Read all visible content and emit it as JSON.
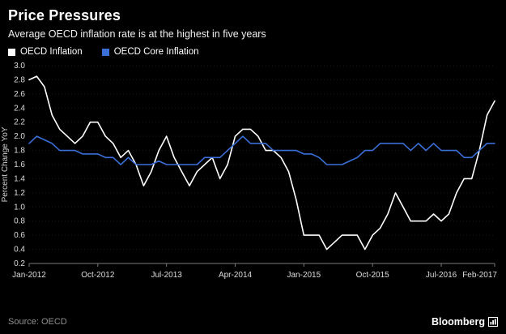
{
  "footer": {
    "source": "Source: OECD",
    "brand": "Bloomberg"
  },
  "chart_data": {
    "type": "line",
    "title": "Price Pressures",
    "subtitle": "Average OECD inflation rate is at the highest in five years",
    "ylabel": "Percent Change YoY",
    "ylim": [
      0.2,
      3.0
    ],
    "y_ticks": [
      0.2,
      0.4,
      0.6,
      0.8,
      1.0,
      1.2,
      1.4,
      1.6,
      1.8,
      2.0,
      2.2,
      2.4,
      2.6,
      2.8,
      3.0
    ],
    "x_unit": "monthly, Jan-2012 to Feb-2017",
    "x_ticks": [
      {
        "i": 0,
        "label": "Jan-2012"
      },
      {
        "i": 9,
        "label": "Oct-2012"
      },
      {
        "i": 18,
        "label": "Jul-2013"
      },
      {
        "i": 27,
        "label": "Apr-2014"
      },
      {
        "i": 36,
        "label": "Jan-2015"
      },
      {
        "i": 45,
        "label": "Oct-2015"
      },
      {
        "i": 54,
        "label": "Jul-2016"
      },
      {
        "i": 61,
        "label": "Feb-2017"
      }
    ],
    "legend_position": "top-left",
    "grid": "off",
    "series": [
      {
        "name": "OECD Inflation",
        "color": "#ffffff",
        "values": [
          2.8,
          2.85,
          2.7,
          2.3,
          2.1,
          2.0,
          1.9,
          2.0,
          2.2,
          2.2,
          2.0,
          1.9,
          1.7,
          1.8,
          1.6,
          1.3,
          1.5,
          1.8,
          2.0,
          1.7,
          1.5,
          1.3,
          1.5,
          1.6,
          1.7,
          1.4,
          1.6,
          2.0,
          2.1,
          2.1,
          2.0,
          1.8,
          1.8,
          1.7,
          1.5,
          1.1,
          0.6,
          0.6,
          0.6,
          0.4,
          0.5,
          0.6,
          0.6,
          0.6,
          0.4,
          0.6,
          0.7,
          0.9,
          1.2,
          1.0,
          0.8,
          0.8,
          0.8,
          0.9,
          0.8,
          0.9,
          1.2,
          1.4,
          1.4,
          1.8,
          2.3,
          2.5
        ]
      },
      {
        "name": "OECD Core Inflation",
        "color": "#3a6fd8",
        "values": [
          1.9,
          2.0,
          1.95,
          1.9,
          1.8,
          1.8,
          1.8,
          1.75,
          1.75,
          1.75,
          1.7,
          1.7,
          1.6,
          1.7,
          1.6,
          1.6,
          1.6,
          1.65,
          1.6,
          1.6,
          1.6,
          1.6,
          1.6,
          1.7,
          1.7,
          1.7,
          1.8,
          1.9,
          2.0,
          1.9,
          1.9,
          1.9,
          1.8,
          1.8,
          1.8,
          1.8,
          1.75,
          1.75,
          1.7,
          1.6,
          1.6,
          1.6,
          1.65,
          1.7,
          1.8,
          1.8,
          1.9,
          1.9,
          1.9,
          1.9,
          1.8,
          1.9,
          1.8,
          1.9,
          1.8,
          1.8,
          1.8,
          1.7,
          1.7,
          1.8,
          1.9,
          1.9
        ]
      }
    ]
  }
}
